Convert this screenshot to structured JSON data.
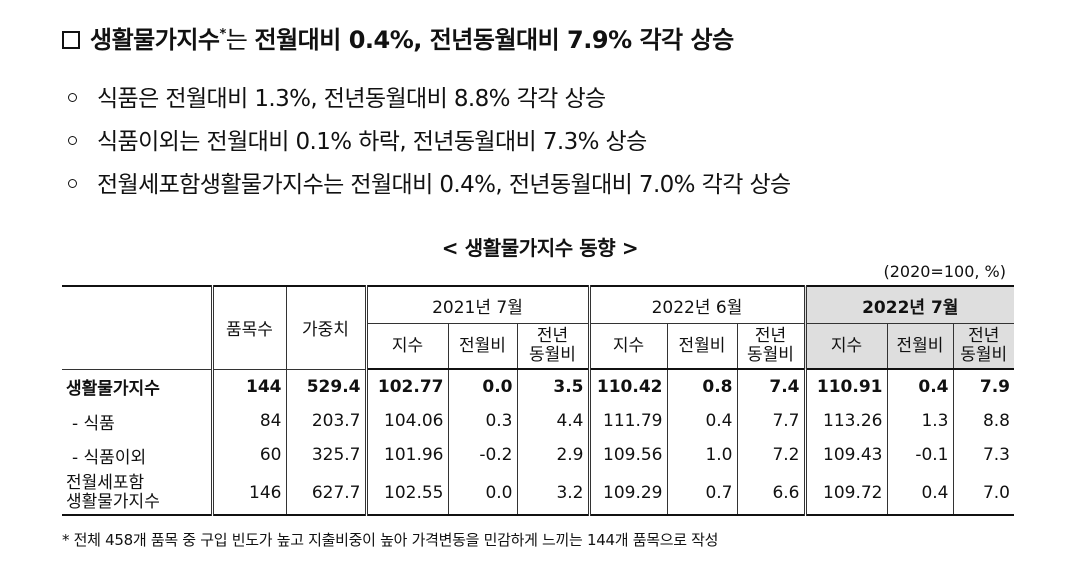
{
  "headline": {
    "term": "생활물가지수",
    "marker": "*",
    "rest_thin": "는 ",
    "rest": "전월대비 0.4%, 전년동월대비 7.9% 각각 상승"
  },
  "bullets": [
    "식품은 전월대비 1.3%, 전년동월대비 8.8% 각각 상승",
    "식품이외는 전월대비 0.1% 하락, 전년동월대비 7.3% 상승",
    "전월세포함생활물가지수는 전월대비 0.4%, 전년동월대비 7.0% 각각 상승"
  ],
  "table": {
    "caption": "< 생활물가지수 동향 >",
    "unit": "(2020=100, %)",
    "col_items": "품목수",
    "col_weight": "가중치",
    "periods": [
      "2021년 7월",
      "2022년 6월",
      "2022년 7월"
    ],
    "sub_index": "지수",
    "sub_mom": "전월비",
    "sub_yoy_1": "전년",
    "sub_yoy_2": "동월비",
    "rows": [
      {
        "name": "생활물가지수",
        "name2": "",
        "items": "144",
        "weight": "529.4",
        "v": [
          "102.77",
          "0.0",
          "3.5",
          "110.42",
          "0.8",
          "7.4",
          "110.91",
          "0.4",
          "7.9"
        ]
      },
      {
        "name": "- 식품",
        "name2": "",
        "items": "84",
        "weight": "203.7",
        "v": [
          "104.06",
          "0.3",
          "4.4",
          "111.79",
          "0.4",
          "7.7",
          "113.26",
          "1.3",
          "8.8"
        ]
      },
      {
        "name": "- 식품이외",
        "name2": "",
        "items": "60",
        "weight": "325.7",
        "v": [
          "101.96",
          "-0.2",
          "2.9",
          "109.56",
          "1.0",
          "7.2",
          "109.43",
          "-0.1",
          "7.3"
        ]
      },
      {
        "name": "전월세포함",
        "name2": "생활물가지수",
        "items": "146",
        "weight": "627.7",
        "v": [
          "102.55",
          "0.0",
          "3.2",
          "109.29",
          "0.7",
          "6.6",
          "109.72",
          "0.4",
          "7.0"
        ]
      }
    ]
  },
  "footnote": "* 전체 458개 품목 중 구입 빈도가 높고 지출비중이 높아 가격변동을 민감하게 느끼는 144개 품목으로 작성"
}
